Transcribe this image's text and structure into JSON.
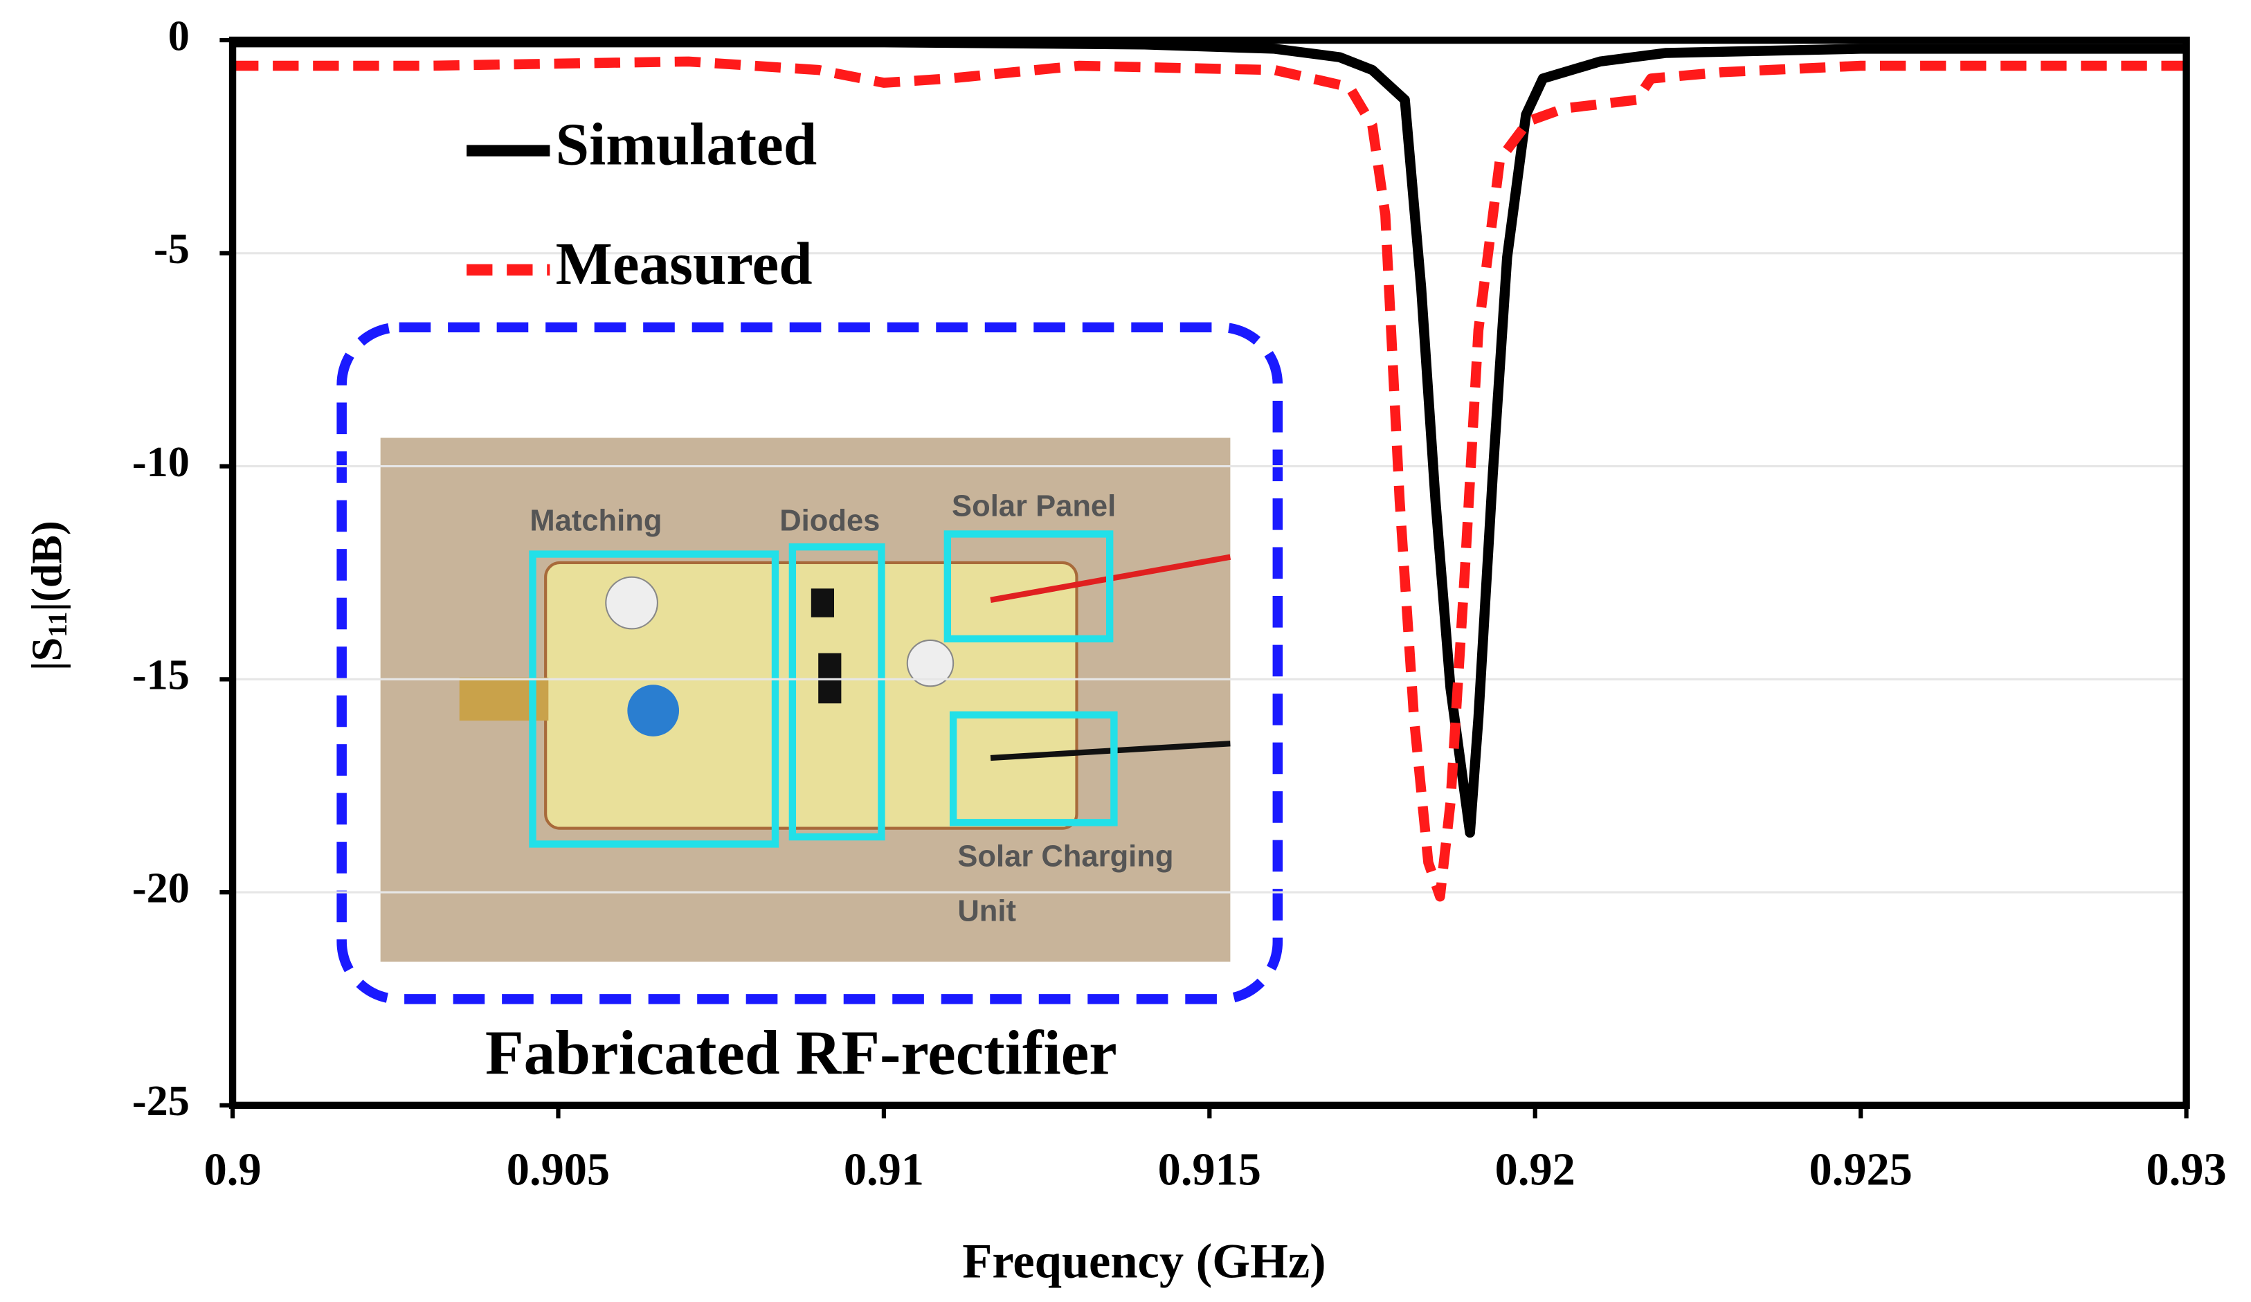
{
  "chart_data": {
    "type": "line",
    "x_label": "Frequency (GHz)",
    "y_label_parts": [
      "|S",
      "11",
      "|(dB)"
    ],
    "xlim": [
      0.9,
      0.93
    ],
    "xticks": [
      0.9,
      0.905,
      0.91,
      0.915,
      0.92,
      0.925,
      0.93
    ],
    "ylim": [
      -25,
      0
    ],
    "yticks": [
      0,
      -5,
      -10,
      -15,
      -20,
      -25
    ],
    "grid": true,
    "legend": "upper left",
    "series": [
      {
        "name": "Simulated",
        "color": "#000000",
        "dash": "solid",
        "x": [
          0.9,
          0.905,
          0.91,
          0.914,
          0.916,
          0.917,
          0.9175,
          0.918,
          0.91825,
          0.91847,
          0.9187,
          0.919,
          0.91913,
          0.91935,
          0.91957,
          0.91986,
          0.92012,
          0.921,
          0.922,
          0.925,
          0.93
        ],
        "values": [
          -0.05,
          -0.05,
          -0.05,
          -0.1,
          -0.2,
          -0.4,
          -0.7,
          -1.4,
          -5.8,
          -10.8,
          -15.2,
          -18.6,
          -15.9,
          -10.2,
          -5.1,
          -1.75,
          -0.9,
          -0.5,
          -0.3,
          -0.2,
          -0.2
        ]
      },
      {
        "name": "Measured",
        "color": "#ff1a1a",
        "dash": "dashed",
        "x": [
          0.9,
          0.903,
          0.905,
          0.907,
          0.909,
          0.91,
          0.911,
          0.913,
          0.916,
          0.91715,
          0.9175,
          0.9177,
          0.91792,
          0.91814,
          0.91836,
          0.91854,
          0.9187,
          0.91892,
          0.91913,
          0.91946,
          0.9199,
          0.92045,
          0.92156,
          0.92178,
          0.92288,
          0.925,
          0.93
        ],
        "values": [
          -0.6,
          -0.6,
          -0.55,
          -0.5,
          -0.7,
          -1.0,
          -0.9,
          -0.6,
          -0.7,
          -1.1,
          -2.0,
          -4.1,
          -10.8,
          -15.9,
          -19.3,
          -20.1,
          -17.9,
          -12.5,
          -6.8,
          -2.8,
          -1.9,
          -1.6,
          -1.4,
          -0.9,
          -0.75,
          -0.6,
          -0.6
        ]
      }
    ],
    "inset": {
      "labels": [
        "Matching",
        "Diodes",
        "Solar Panel"
      ],
      "charging_label_lines": [
        "Solar Charging",
        "Unit"
      ],
      "caption": "Fabricated RF-rectifier"
    }
  }
}
